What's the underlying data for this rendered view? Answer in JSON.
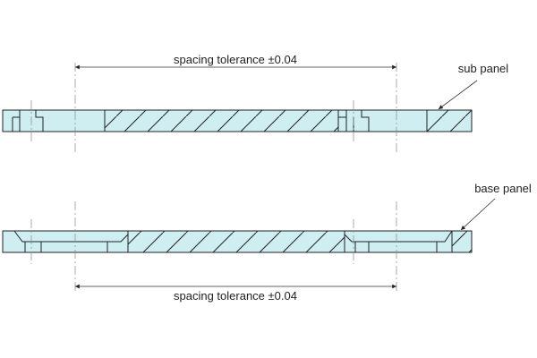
{
  "dimensions": [
    {
      "label": "spacing tolerance ±0.04"
    },
    {
      "label": "spacing tolerance ±0.04"
    }
  ],
  "callouts": [
    {
      "label": "sub panel"
    },
    {
      "label": "base panel"
    }
  ]
}
